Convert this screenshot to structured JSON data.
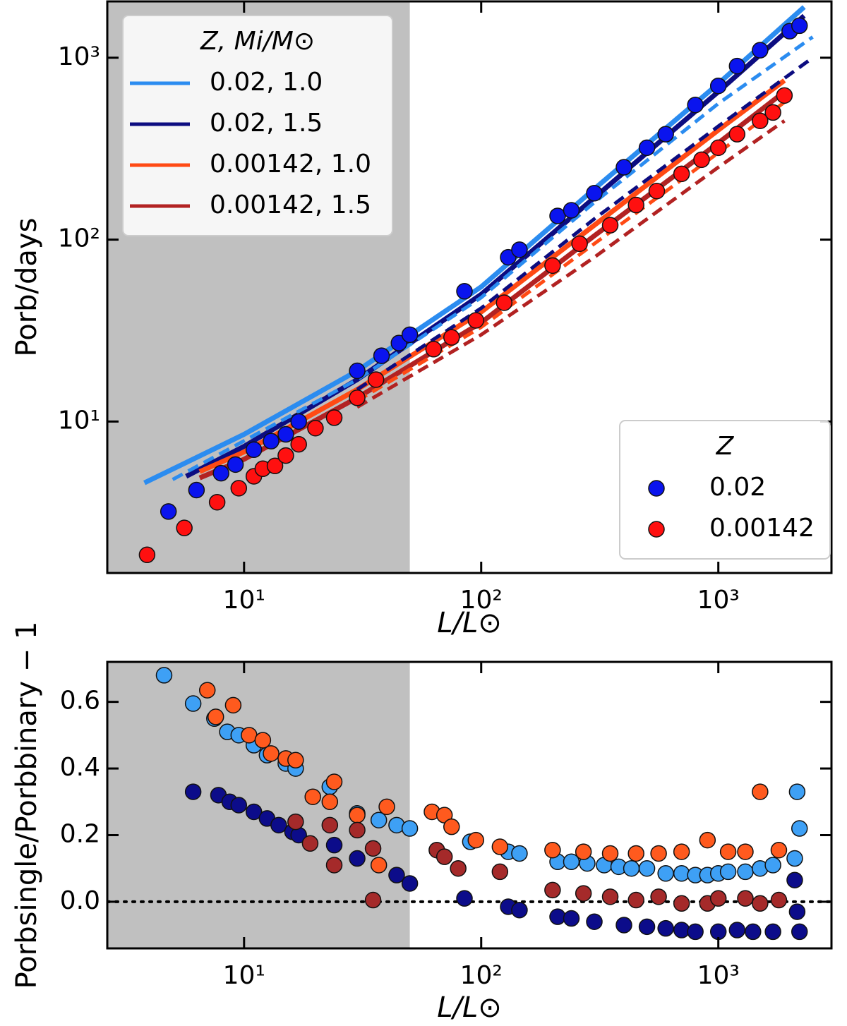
{
  "chart_data": [
    {
      "type": "scatter",
      "ylabel": "Porb/days",
      "xlabel": "L/L⊙",
      "xlog": true,
      "ylog": true,
      "xlim": [
        2.65,
        3000
      ],
      "ylim": [
        1.47,
        2040
      ],
      "xticks": [
        {
          "value": 10,
          "label": "10¹"
        },
        {
          "value": 100,
          "label": "10²"
        },
        {
          "value": 1000,
          "label": "10³"
        }
      ],
      "yticks": [
        {
          "value": 10,
          "label": "10¹"
        },
        {
          "value": 100,
          "label": "10²"
        },
        {
          "value": 1000,
          "label": "10³"
        }
      ],
      "shade_xmax": 50,
      "shade_color": "#c0c0c0",
      "legends": [
        {
          "title": "Z, Mi/M⊙",
          "loc": "upper left",
          "mode": "line"
        },
        {
          "title": "Z",
          "loc": "lower right",
          "mode": "marker"
        }
      ],
      "series": [
        {
          "name": "0.02, 1.0",
          "mode": "line",
          "color": "#2b8cf0",
          "x": [
            3.8,
            10,
            30,
            100,
            300,
            1000,
            2300
          ],
          "values": [
            4.6,
            8.5,
            19,
            55,
            190,
            720,
            1900
          ]
        },
        {
          "name": "0.02, 1.5",
          "mode": "line",
          "color": "#0c0c80",
          "x": [
            5.7,
            10,
            30,
            100,
            300,
            1000,
            2300
          ],
          "values": [
            5.0,
            7.3,
            17,
            50,
            170,
            650,
            1700
          ]
        },
        {
          "name": "0.00142, 1.0",
          "mode": "line",
          "color": "#ff4a14",
          "x": [
            6.5,
            10,
            30,
            100,
            300,
            1000,
            1900
          ],
          "values": [
            5.3,
            6.8,
            15,
            40,
            120,
            400,
            750
          ]
        },
        {
          "name": "0.00142, 1.5",
          "mode": "line",
          "color": "#b22222",
          "x": [
            6.5,
            10,
            30,
            100,
            300,
            1000,
            1900
          ],
          "values": [
            4.9,
            6.2,
            13.5,
            35,
            105,
            340,
            650
          ]
        },
        {
          "mode": "dashed",
          "color": "#2b8cf0",
          "x": [
            5,
            30,
            100,
            300,
            1000,
            2500
          ],
          "values": [
            4.8,
            17,
            48,
            160,
            560,
            1300
          ]
        },
        {
          "mode": "dashed",
          "color": "#0c0c80",
          "x": [
            30,
            100,
            300,
            1000,
            2500
          ],
          "values": [
            15,
            42,
            130,
            420,
            1000
          ]
        },
        {
          "mode": "dashed",
          "color": "#ff4a14",
          "x": [
            30,
            100,
            300,
            1000,
            2000
          ],
          "values": [
            13,
            33,
            95,
            300,
            600
          ]
        },
        {
          "mode": "dashed",
          "color": "#b22222",
          "x": [
            30,
            100,
            300,
            1000,
            1900
          ],
          "values": [
            12,
            30,
            80,
            250,
            450
          ]
        },
        {
          "name": "0.02",
          "mode": "marker",
          "color": "#0a14ee",
          "x": [
            4.8,
            6.3,
            8,
            9.2,
            11,
            13,
            15,
            17,
            30,
            38,
            45,
            50,
            85,
            130,
            145,
            210,
            240,
            300,
            400,
            500,
            600,
            800,
            1000,
            1200,
            1500,
            2000,
            2200
          ],
          "values": [
            3.2,
            4.2,
            5.2,
            5.8,
            7,
            7.8,
            8.5,
            10,
            19,
            23,
            27,
            30,
            52,
            80,
            88,
            135,
            145,
            180,
            250,
            320,
            380,
            550,
            700,
            900,
            1100,
            1400,
            1500
          ]
        },
        {
          "name": "0.00142",
          "mode": "marker",
          "color": "#ff1010",
          "x": [
            3.9,
            5.6,
            7.7,
            9.5,
            11,
            12,
            13.5,
            15,
            17,
            20,
            24,
            30,
            36,
            63,
            75,
            95,
            125,
            200,
            260,
            350,
            450,
            550,
            700,
            850,
            1000,
            1200,
            1500,
            1700,
            1900
          ],
          "values": [
            1.85,
            2.6,
            3.6,
            4.3,
            5,
            5.5,
            5.7,
            6.5,
            7.5,
            9.2,
            10.5,
            13.5,
            17,
            25,
            29,
            36,
            45,
            72,
            95,
            120,
            155,
            185,
            230,
            275,
            320,
            380,
            450,
            500,
            620
          ]
        }
      ]
    },
    {
      "type": "scatter",
      "ylabel": "Porbsingle/Porbbinary − 1",
      "xlabel": "L/L⊙",
      "xlog": true,
      "xlim": [
        2.65,
        3000
      ],
      "ylim": [
        -0.14,
        0.72
      ],
      "xticks": [
        {
          "value": 10,
          "label": "10¹"
        },
        {
          "value": 100,
          "label": "10²"
        },
        {
          "value": 1000,
          "label": "10³"
        }
      ],
      "yticks": [
        {
          "value": 0,
          "label": "0.0"
        },
        0.2,
        0.4,
        0.6
      ],
      "shade_xmax": 50,
      "shade_color": "#c0c0c0",
      "hline": 0,
      "series": [
        {
          "mode": "marker",
          "color": "#3ea0f5",
          "x": [
            4.6,
            6.1,
            7.5,
            8.5,
            9.5,
            11,
            12.5,
            15,
            16.5,
            23,
            30,
            37,
            44,
            50,
            90,
            130,
            145,
            210,
            240,
            280,
            330,
            380,
            430,
            500,
            600,
            700,
            800,
            900,
            1000,
            1100,
            1300,
            1500,
            1700,
            2100,
            2150,
            2200
          ],
          "values": [
            0.68,
            0.595,
            0.55,
            0.51,
            0.5,
            0.47,
            0.44,
            0.415,
            0.4,
            0.345,
            0.265,
            0.245,
            0.23,
            0.22,
            0.18,
            0.15,
            0.145,
            0.12,
            0.12,
            0.115,
            0.11,
            0.105,
            0.1,
            0.1,
            0.085,
            0.085,
            0.08,
            0.08,
            0.085,
            0.09,
            0.09,
            0.1,
            0.11,
            0.13,
            0.33,
            0.22
          ]
        },
        {
          "mode": "marker",
          "color": "#0c0c8a",
          "x": [
            6.1,
            7.8,
            8.7,
            9.5,
            11,
            12.5,
            14,
            16,
            17,
            24,
            30,
            44,
            50,
            85,
            130,
            145,
            210,
            240,
            300,
            400,
            500,
            600,
            700,
            800,
            1000,
            1200,
            1400,
            1700,
            2100,
            2150,
            2200
          ],
          "values": [
            0.33,
            0.32,
            0.3,
            0.29,
            0.27,
            0.25,
            0.23,
            0.21,
            0.2,
            0.17,
            0.13,
            0.08,
            0.055,
            0.01,
            -0.015,
            -0.025,
            -0.045,
            -0.05,
            -0.06,
            -0.07,
            -0.075,
            -0.08,
            -0.085,
            -0.09,
            -0.09,
            -0.085,
            -0.09,
            -0.09,
            0.065,
            -0.03,
            -0.09
          ]
        },
        {
          "mode": "marker",
          "color": "#ff5a1e",
          "x": [
            7,
            7.6,
            9,
            10.5,
            12,
            13,
            15,
            16.5,
            19.5,
            23,
            24,
            30,
            37,
            40,
            62,
            70,
            75,
            95,
            120,
            200,
            270,
            350,
            450,
            560,
            700,
            900,
            1100,
            1300,
            1500,
            1800
          ],
          "values": [
            0.635,
            0.555,
            0.59,
            0.5,
            0.485,
            0.445,
            0.43,
            0.425,
            0.315,
            0.3,
            0.36,
            0.26,
            0.11,
            0.285,
            0.27,
            0.26,
            0.225,
            0.185,
            0.165,
            0.155,
            0.15,
            0.145,
            0.145,
            0.145,
            0.15,
            0.185,
            0.15,
            0.15,
            0.33,
            0.155
          ]
        },
        {
          "mode": "marker",
          "color": "#a52a2a",
          "x": [
            16.5,
            19,
            23,
            24,
            30,
            35,
            35,
            65,
            70,
            80,
            120,
            200,
            270,
            350,
            450,
            560,
            700,
            900,
            1000,
            1300,
            1500,
            1800
          ],
          "values": [
            0.24,
            0.175,
            0.23,
            0.11,
            0.215,
            0.005,
            0.16,
            0.155,
            0.135,
            0.1,
            0.09,
            0.035,
            0.025,
            0.015,
            0.005,
            0.015,
            -0.005,
            -0.005,
            0.01,
            0.01,
            -0.005,
            0.005
          ]
        }
      ]
    }
  ]
}
